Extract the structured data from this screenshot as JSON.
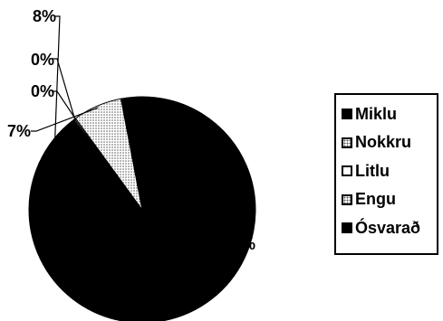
{
  "chart_data": {
    "type": "pie",
    "title": "",
    "slices": [
      {
        "label": "Miklu",
        "value": 8,
        "value_label": "8%",
        "fill": "#000000"
      },
      {
        "label": "Nokkru",
        "value": 0,
        "value_label": "0%",
        "fill": "stipple"
      },
      {
        "label": "Litlu",
        "value": 0,
        "value_label": "0%",
        "fill": "#ffffff"
      },
      {
        "label": "Engu",
        "value": 7,
        "value_label": "7%",
        "fill": "stipple"
      },
      {
        "label": "Ósvarað",
        "value": 85,
        "value_label": "85%",
        "fill": "#000000"
      }
    ],
    "legend_position": "right"
  }
}
